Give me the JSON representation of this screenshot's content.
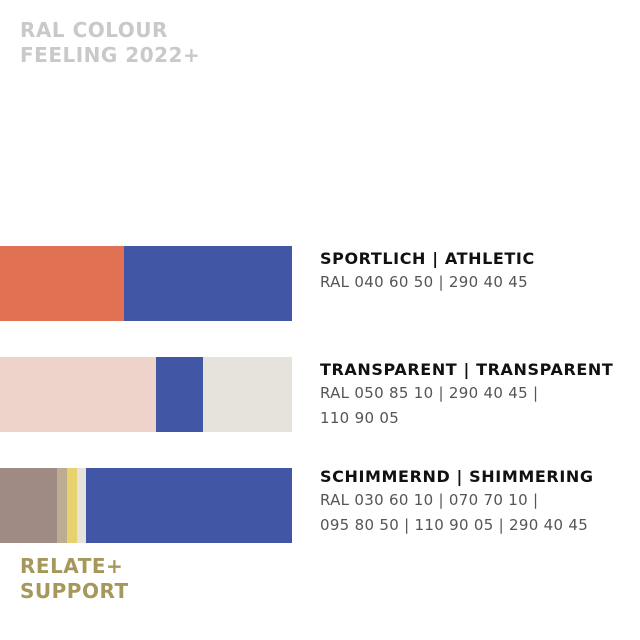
{
  "header": {
    "line1": "RAL COLOUR",
    "line2": "FEELING 2022+"
  },
  "palettes": [
    {
      "title": "SPORTLICH | ATHLETIC",
      "code_lines": [
        "RAL 040 60 50 | 290 40 45"
      ],
      "swatches": [
        {
          "color": "#e07152",
          "share": 0.425
        },
        {
          "color": "#4157a5",
          "share": 0.575
        }
      ]
    },
    {
      "title": "TRANSPARENT | TRANSPARENT",
      "code_lines": [
        "RAL 050 85 10 | 290 40 45 |",
        "110 90 05"
      ],
      "swatches": [
        {
          "color": "#edd3ca",
          "share": 0.535
        },
        {
          "color": "#4157a5",
          "share": 0.16
        },
        {
          "color": "#e6e3dd",
          "share": 0.305
        }
      ]
    },
    {
      "title": "SCHIMMERND | SHIMMERING",
      "code_lines": [
        "RAL 030 60 10 | 070 70 10 |",
        "095 80 50 | 110 90 05 | 290 40 45"
      ],
      "swatches": [
        {
          "color": "#a08a84",
          "share": 0.195
        },
        {
          "color": "#bcad92",
          "share": 0.035
        },
        {
          "color": "#e7d26e",
          "share": 0.035
        },
        {
          "color": "#e6e3dd",
          "share": 0.03
        },
        {
          "color": "#4157a5",
          "share": 0.705
        }
      ]
    }
  ],
  "footer": {
    "line1": "RELATE+",
    "line2": "SUPPORT",
    "color": "#a6985a"
  }
}
